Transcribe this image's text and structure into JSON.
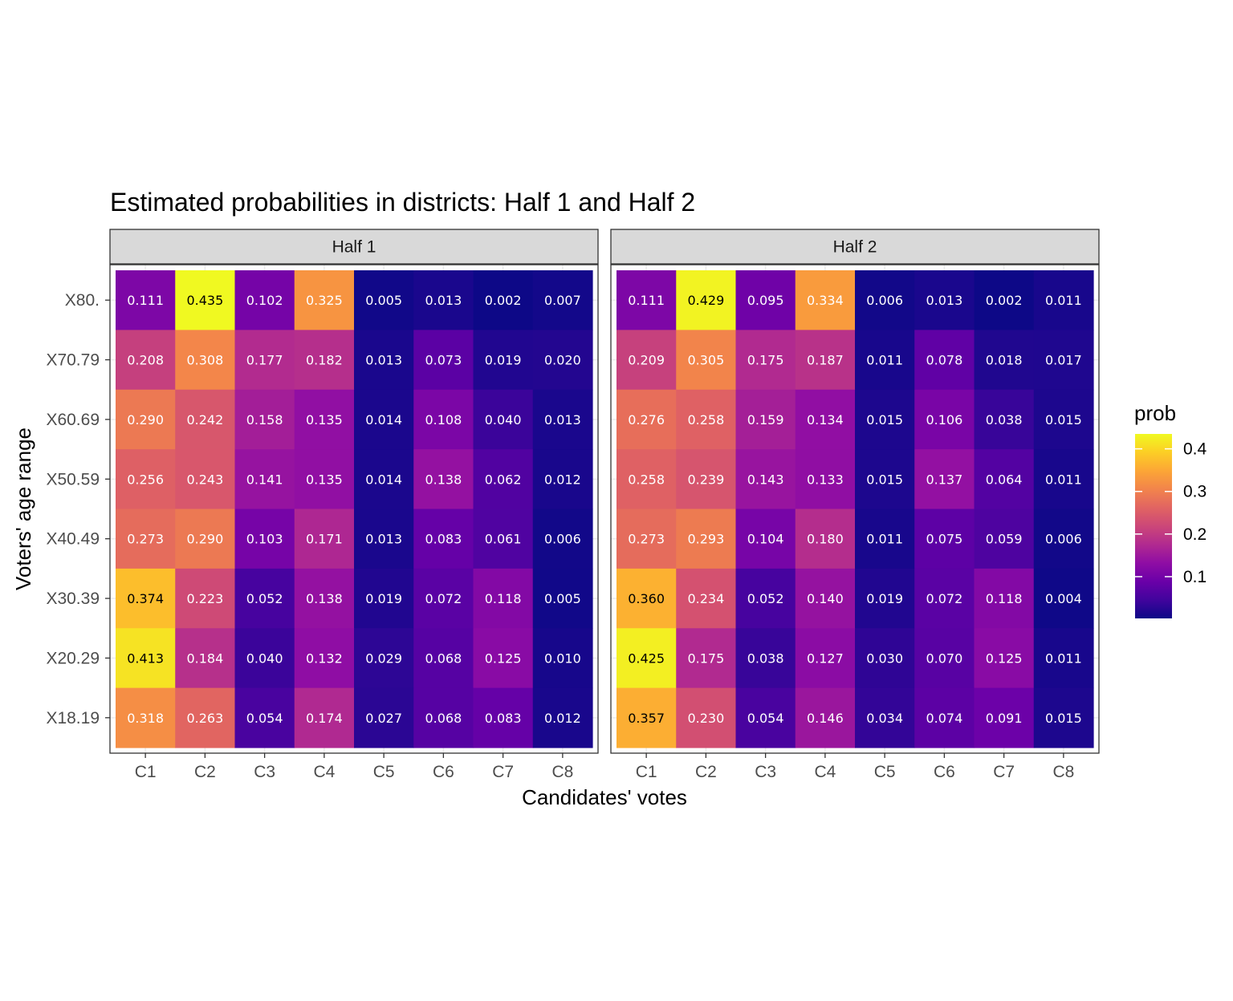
{
  "chart_data": {
    "type": "heatmap",
    "title": "Estimated probabilities in districts: Half 1 and Half 2",
    "xlabel": "Candidates' votes",
    "ylabel": "Voters' age range",
    "x_categories": [
      "C1",
      "C2",
      "C3",
      "C4",
      "C5",
      "C6",
      "C7",
      "C8"
    ],
    "y_categories": [
      "X80.",
      "X70.79",
      "X60.69",
      "X50.59",
      "X40.49",
      "X30.39",
      "X20.29",
      "X18.19"
    ],
    "legend": {
      "title": "prob",
      "position": "right",
      "range": [
        0.002,
        0.435
      ],
      "ticks": [
        0.1,
        0.2,
        0.3,
        0.4
      ],
      "tick_labels": [
        "0.1",
        "0.2",
        "0.3",
        "0.4"
      ],
      "colormap": "plasma"
    },
    "panels": [
      {
        "name": "Half 1",
        "values": [
          [
            "0.111",
            "0.435",
            "0.102",
            "0.325",
            "0.005",
            "0.013",
            "0.002",
            "0.007"
          ],
          [
            "0.208",
            "0.308",
            "0.177",
            "0.182",
            "0.013",
            "0.073",
            "0.019",
            "0.020"
          ],
          [
            "0.290",
            "0.242",
            "0.158",
            "0.135",
            "0.014",
            "0.108",
            "0.040",
            "0.013"
          ],
          [
            "0.256",
            "0.243",
            "0.141",
            "0.135",
            "0.014",
            "0.138",
            "0.062",
            "0.012"
          ],
          [
            "0.273",
            "0.290",
            "0.103",
            "0.171",
            "0.013",
            "0.083",
            "0.061",
            "0.006"
          ],
          [
            "0.374",
            "0.223",
            "0.052",
            "0.138",
            "0.019",
            "0.072",
            "0.118",
            "0.005"
          ],
          [
            "0.413",
            "0.184",
            "0.040",
            "0.132",
            "0.029",
            "0.068",
            "0.125",
            "0.010"
          ],
          [
            "0.318",
            "0.263",
            "0.054",
            "0.174",
            "0.027",
            "0.068",
            "0.083",
            "0.012"
          ]
        ]
      },
      {
        "name": "Half 2",
        "values": [
          [
            "0.111",
            "0.429",
            "0.095",
            "0.334",
            "0.006",
            "0.013",
            "0.002",
            "0.011"
          ],
          [
            "0.209",
            "0.305",
            "0.175",
            "0.187",
            "0.011",
            "0.078",
            "0.018",
            "0.017"
          ],
          [
            "0.276",
            "0.258",
            "0.159",
            "0.134",
            "0.015",
            "0.106",
            "0.038",
            "0.015"
          ],
          [
            "0.258",
            "0.239",
            "0.143",
            "0.133",
            "0.015",
            "0.137",
            "0.064",
            "0.011"
          ],
          [
            "0.273",
            "0.293",
            "0.104",
            "0.180",
            "0.011",
            "0.075",
            "0.059",
            "0.006"
          ],
          [
            "0.360",
            "0.234",
            "0.052",
            "0.140",
            "0.019",
            "0.072",
            "0.118",
            "0.004"
          ],
          [
            "0.425",
            "0.175",
            "0.038",
            "0.127",
            "0.030",
            "0.070",
            "0.125",
            "0.011"
          ],
          [
            "0.357",
            "0.230",
            "0.054",
            "0.146",
            "0.034",
            "0.074",
            "0.091",
            "0.015"
          ]
        ]
      }
    ]
  }
}
